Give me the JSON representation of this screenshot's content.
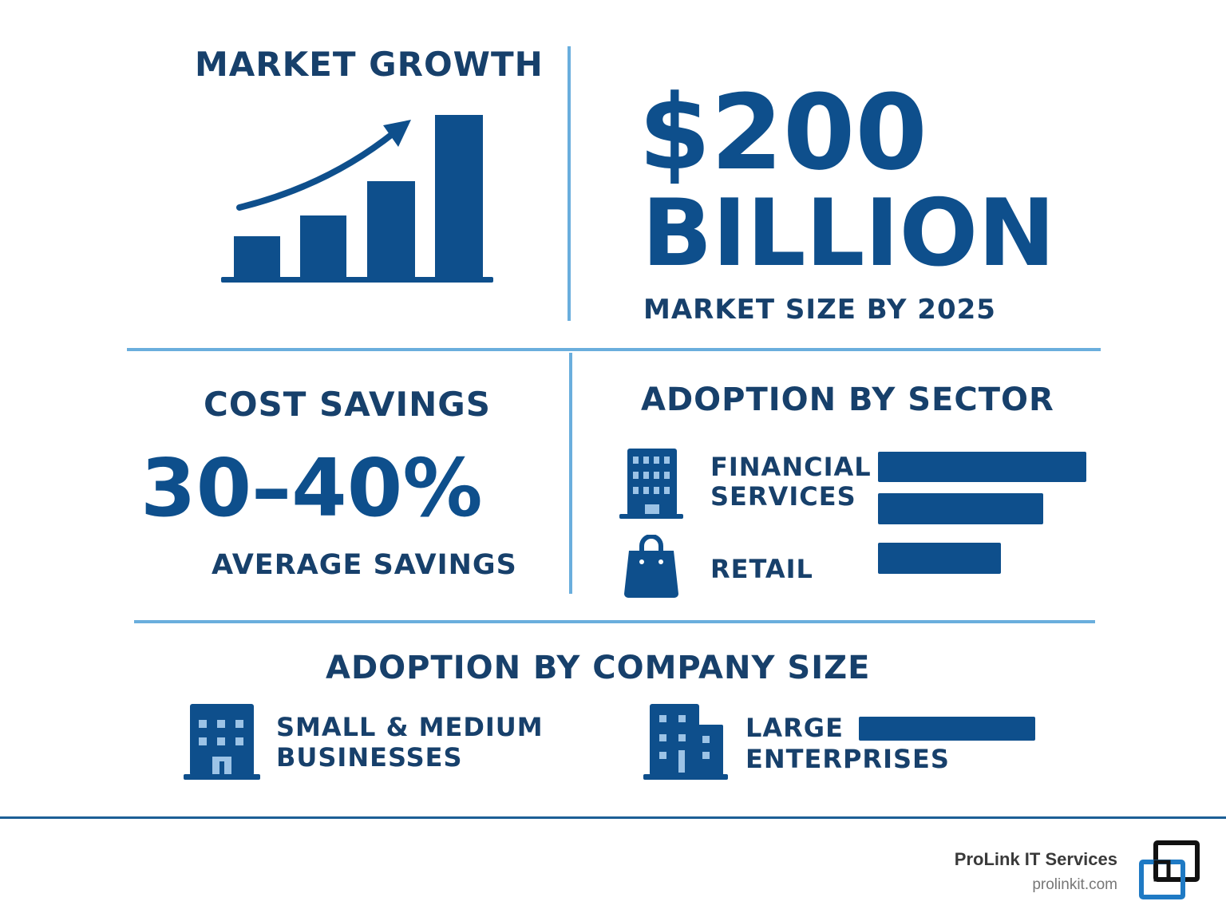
{
  "market_growth": {
    "title": "MARKET GROWTH",
    "icon": "bar-chart-growth-icon"
  },
  "market_size": {
    "value_line1": "$200",
    "value_line2": "BILLION",
    "caption": "MARKET SIZE BY 2025"
  },
  "cost_savings": {
    "title": "COST SAVINGS",
    "value": "30–40%",
    "caption": "AVERAGE SAVINGS"
  },
  "adoption_by_sector": {
    "title": "ADOPTION BY SECTOR",
    "sectors": [
      {
        "label_line1": "FINANCIAL",
        "label_line2": "SERVICES",
        "icon": "office-building-icon",
        "bars": [
          1.0,
          0.79
        ]
      },
      {
        "label_line1": "RETAIL",
        "icon": "shopping-bag-icon",
        "bars": [
          0.59
        ]
      }
    ]
  },
  "adoption_by_company_size": {
    "title": "ADOPTION BY COMPANY SIZE",
    "segments": [
      {
        "label_line1": "SMALL & MEDIUM",
        "label_line2": "BUSINESSES",
        "icon": "small-building-icon"
      },
      {
        "label_line1": "LARGE",
        "label_line2": "ENTERPRISES",
        "icon": "large-building-icon",
        "bar": 1.0
      }
    ]
  },
  "footer": {
    "company": "ProLink IT Services",
    "website": "prolinkit.com",
    "logo": "prolink-logo-icon",
    "rule_color": "#1c5f96"
  },
  "colors": {
    "primary": "#0e4f8c",
    "heading": "#17406b",
    "divider": "#6aaedd"
  }
}
